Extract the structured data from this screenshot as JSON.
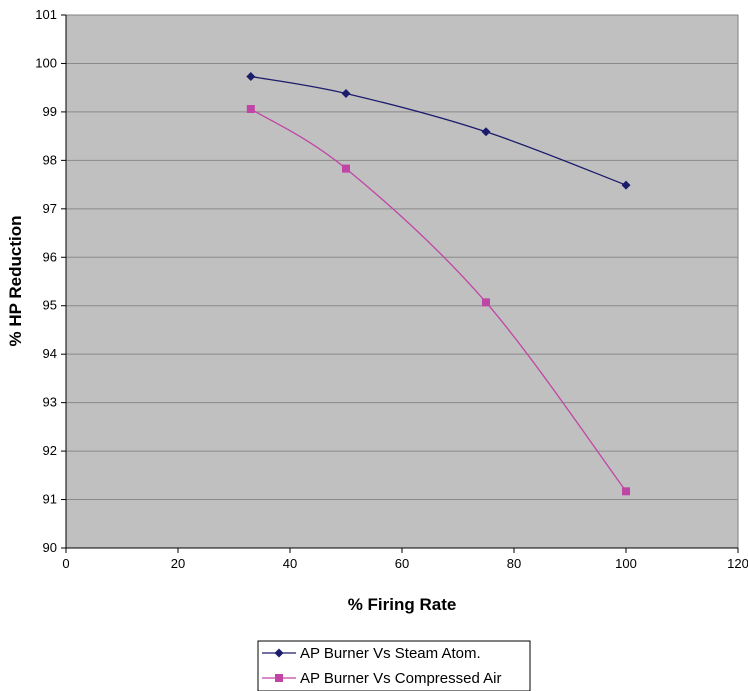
{
  "chart_data": {
    "type": "line",
    "xlabel": "% Firing Rate",
    "ylabel": "% HP Reduction",
    "xlim": [
      0,
      120
    ],
    "ylim": [
      90,
      101
    ],
    "x_ticks": [
      0,
      20,
      40,
      60,
      80,
      100,
      120
    ],
    "y_ticks": [
      90,
      91,
      92,
      93,
      94,
      95,
      96,
      97,
      98,
      99,
      100,
      101
    ],
    "grid": "horizontal",
    "plot_background": "#c0c0c0",
    "legend_position": "bottom",
    "smoothed": true,
    "series": [
      {
        "name": "AP Burner Vs Steam Atom.",
        "color": "#1c1c6c",
        "marker": "diamond",
        "x": [
          33,
          50,
          75,
          100
        ],
        "y": [
          99.73,
          99.38,
          98.59,
          97.49
        ]
      },
      {
        "name": "AP Burner Vs Compressed Air",
        "color": "#c046a6",
        "marker": "square",
        "x": [
          33,
          50,
          75,
          100
        ],
        "y": [
          99.06,
          97.83,
          95.07,
          91.17
        ]
      }
    ]
  }
}
